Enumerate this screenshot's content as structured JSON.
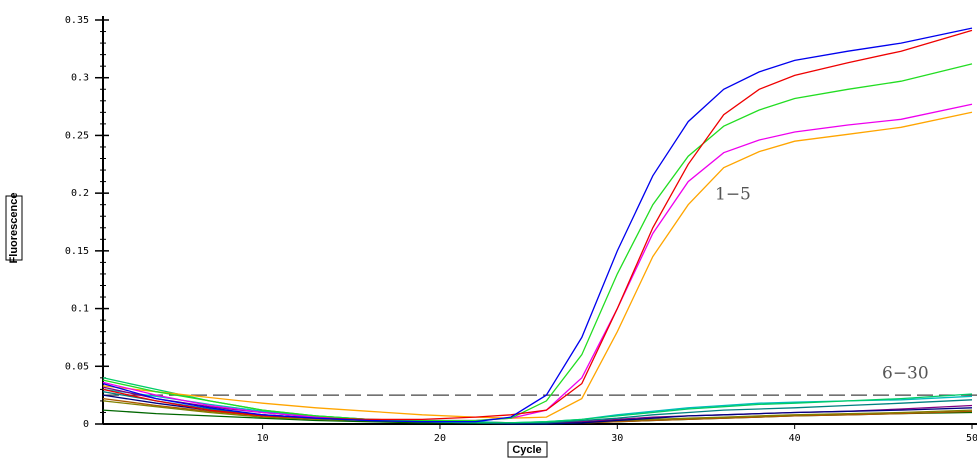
{
  "chart_data": {
    "type": "line",
    "x_label": "Cycle",
    "y_label": "Fluorescence",
    "x": [
      1,
      4,
      7,
      10,
      13,
      16,
      19,
      22,
      24,
      26,
      28,
      30,
      32,
      34,
      36,
      38,
      40,
      43,
      46,
      50
    ],
    "xlim": [
      1,
      50
    ],
    "xticks": [
      10,
      20,
      30,
      40,
      50
    ],
    "ylim": [
      0,
      0.35
    ],
    "yticks": [
      0,
      0.05,
      0.1,
      0.15,
      0.2,
      0.25,
      0.3,
      0.35
    ],
    "threshold": 0.025,
    "annotations": [
      "1−5",
      "6−30"
    ],
    "series": [
      {
        "color": "#0000ee",
        "values": [
          0.035,
          0.022,
          0.014,
          0.008,
          0.005,
          0.003,
          0.002,
          0.002,
          0.006,
          0.025,
          0.075,
          0.15,
          0.215,
          0.262,
          0.29,
          0.305,
          0.315,
          0.323,
          0.33,
          0.343
        ]
      },
      {
        "color": "#ee0000",
        "values": [
          0.03,
          0.02,
          0.012,
          0.007,
          0.005,
          0.004,
          0.004,
          0.006,
          0.008,
          0.012,
          0.035,
          0.1,
          0.17,
          0.225,
          0.268,
          0.29,
          0.302,
          0.313,
          0.323,
          0.341
        ]
      },
      {
        "color": "#22dd22",
        "values": [
          0.038,
          0.028,
          0.02,
          0.012,
          0.007,
          0.004,
          0.003,
          0.003,
          0.005,
          0.02,
          0.06,
          0.13,
          0.19,
          0.232,
          0.258,
          0.272,
          0.282,
          0.29,
          0.297,
          0.312
        ]
      },
      {
        "color": "#ee00ee",
        "values": [
          0.036,
          0.025,
          0.016,
          0.01,
          0.006,
          0.004,
          0.003,
          0.003,
          0.005,
          0.012,
          0.04,
          0.1,
          0.165,
          0.21,
          0.235,
          0.246,
          0.253,
          0.259,
          0.264,
          0.277
        ]
      },
      {
        "color": "#ffa500",
        "values": [
          0.033,
          0.028,
          0.023,
          0.018,
          0.014,
          0.011,
          0.008,
          0.006,
          0.005,
          0.006,
          0.022,
          0.08,
          0.145,
          0.19,
          0.222,
          0.236,
          0.245,
          0.251,
          0.257,
          0.27
        ]
      },
      {
        "color": "#00cc66",
        "values": [
          0.04,
          0.03,
          0.02,
          0.012,
          0.007,
          0.004,
          0.002,
          0.001,
          0.001,
          0.002,
          0.004,
          0.007,
          0.01,
          0.013,
          0.015,
          0.017,
          0.018,
          0.02,
          0.022,
          0.026
        ]
      },
      {
        "color": "#008080",
        "values": [
          0.028,
          0.02,
          0.013,
          0.008,
          0.005,
          0.003,
          0.002,
          0.001,
          0.001,
          0.001,
          0.003,
          0.005,
          0.008,
          0.01,
          0.012,
          0.013,
          0.014,
          0.016,
          0.018,
          0.021
        ]
      },
      {
        "color": "#000080",
        "values": [
          0.025,
          0.018,
          0.012,
          0.008,
          0.005,
          0.003,
          0.002,
          0.001,
          0.0,
          0.0,
          0.001,
          0.003,
          0.005,
          0.007,
          0.008,
          0.009,
          0.01,
          0.011,
          0.012,
          0.014
        ]
      },
      {
        "color": "#800080",
        "values": [
          0.032,
          0.022,
          0.015,
          0.01,
          0.006,
          0.004,
          0.002,
          0.001,
          0.001,
          0.001,
          0.002,
          0.004,
          0.006,
          0.007,
          0.008,
          0.009,
          0.01,
          0.011,
          0.013,
          0.016
        ]
      },
      {
        "color": "#808000",
        "values": [
          0.02,
          0.015,
          0.01,
          0.006,
          0.004,
          0.003,
          0.002,
          0.001,
          0.001,
          0.001,
          0.002,
          0.003,
          0.004,
          0.005,
          0.006,
          0.007,
          0.008,
          0.009,
          0.01,
          0.012
        ]
      },
      {
        "color": "#00bbbb",
        "values": [
          0.03,
          0.024,
          0.017,
          0.011,
          0.007,
          0.004,
          0.003,
          0.002,
          0.001,
          0.002,
          0.004,
          0.008,
          0.011,
          0.014,
          0.016,
          0.018,
          0.019,
          0.02,
          0.021,
          0.024
        ]
      },
      {
        "color": "#aa5500",
        "values": [
          0.022,
          0.016,
          0.011,
          0.007,
          0.005,
          0.003,
          0.002,
          0.002,
          0.001,
          0.001,
          0.001,
          0.002,
          0.003,
          0.004,
          0.005,
          0.006,
          0.007,
          0.008,
          0.009,
          0.011
        ]
      },
      {
        "color": "#006600",
        "values": [
          0.012,
          0.009,
          0.007,
          0.005,
          0.003,
          0.002,
          0.001,
          0.001,
          0.0,
          0.0,
          0.001,
          0.002,
          0.003,
          0.004,
          0.005,
          0.006,
          0.007,
          0.008,
          0.009,
          0.01
        ]
      }
    ]
  }
}
